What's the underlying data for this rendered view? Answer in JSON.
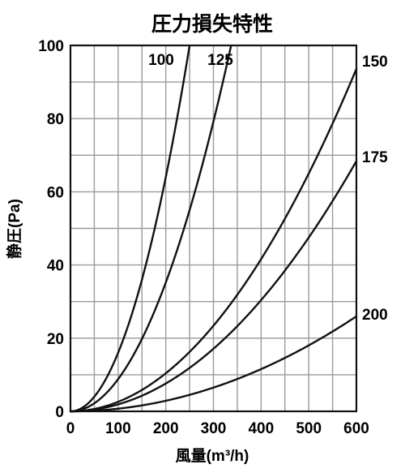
{
  "chart_data": {
    "type": "line",
    "title": "圧力損失特性",
    "xlabel": "風量(m³/h)",
    "ylabel": "静圧(Pa)",
    "xlim": [
      0,
      600
    ],
    "ylim": [
      0,
      100
    ],
    "x_ticks": [
      0,
      100,
      200,
      300,
      400,
      500,
      600
    ],
    "y_ticks": [
      0,
      20,
      40,
      60,
      80,
      100
    ],
    "x_grid_step": 50,
    "y_grid_step": 10,
    "grid": true,
    "series": [
      {
        "name": "100",
        "x": [
          0,
          50,
          100,
          150,
          200,
          250
        ],
        "y": [
          0,
          4,
          16,
          36,
          64,
          100
        ]
      },
      {
        "name": "125",
        "x": [
          0,
          50,
          100,
          150,
          200,
          250,
          300,
          350
        ],
        "y": [
          0,
          2.2,
          8.8,
          19.8,
          35.2,
          55,
          79.2,
          107.8
        ]
      },
      {
        "name": "150",
        "x": [
          0,
          100,
          200,
          300,
          400,
          500,
          600
        ],
        "y": [
          0,
          2.6,
          10.4,
          23.4,
          41.6,
          65,
          93.6
        ]
      },
      {
        "name": "175",
        "x": [
          0,
          100,
          200,
          300,
          400,
          500,
          600
        ],
        "y": [
          0,
          1.9,
          7.6,
          17.1,
          30.4,
          47.5,
          68.4
        ]
      },
      {
        "name": "200",
        "x": [
          0,
          100,
          200,
          300,
          400,
          500,
          600
        ],
        "y": [
          0,
          0.72,
          2.9,
          6.5,
          11.5,
          18,
          26
        ]
      }
    ]
  }
}
